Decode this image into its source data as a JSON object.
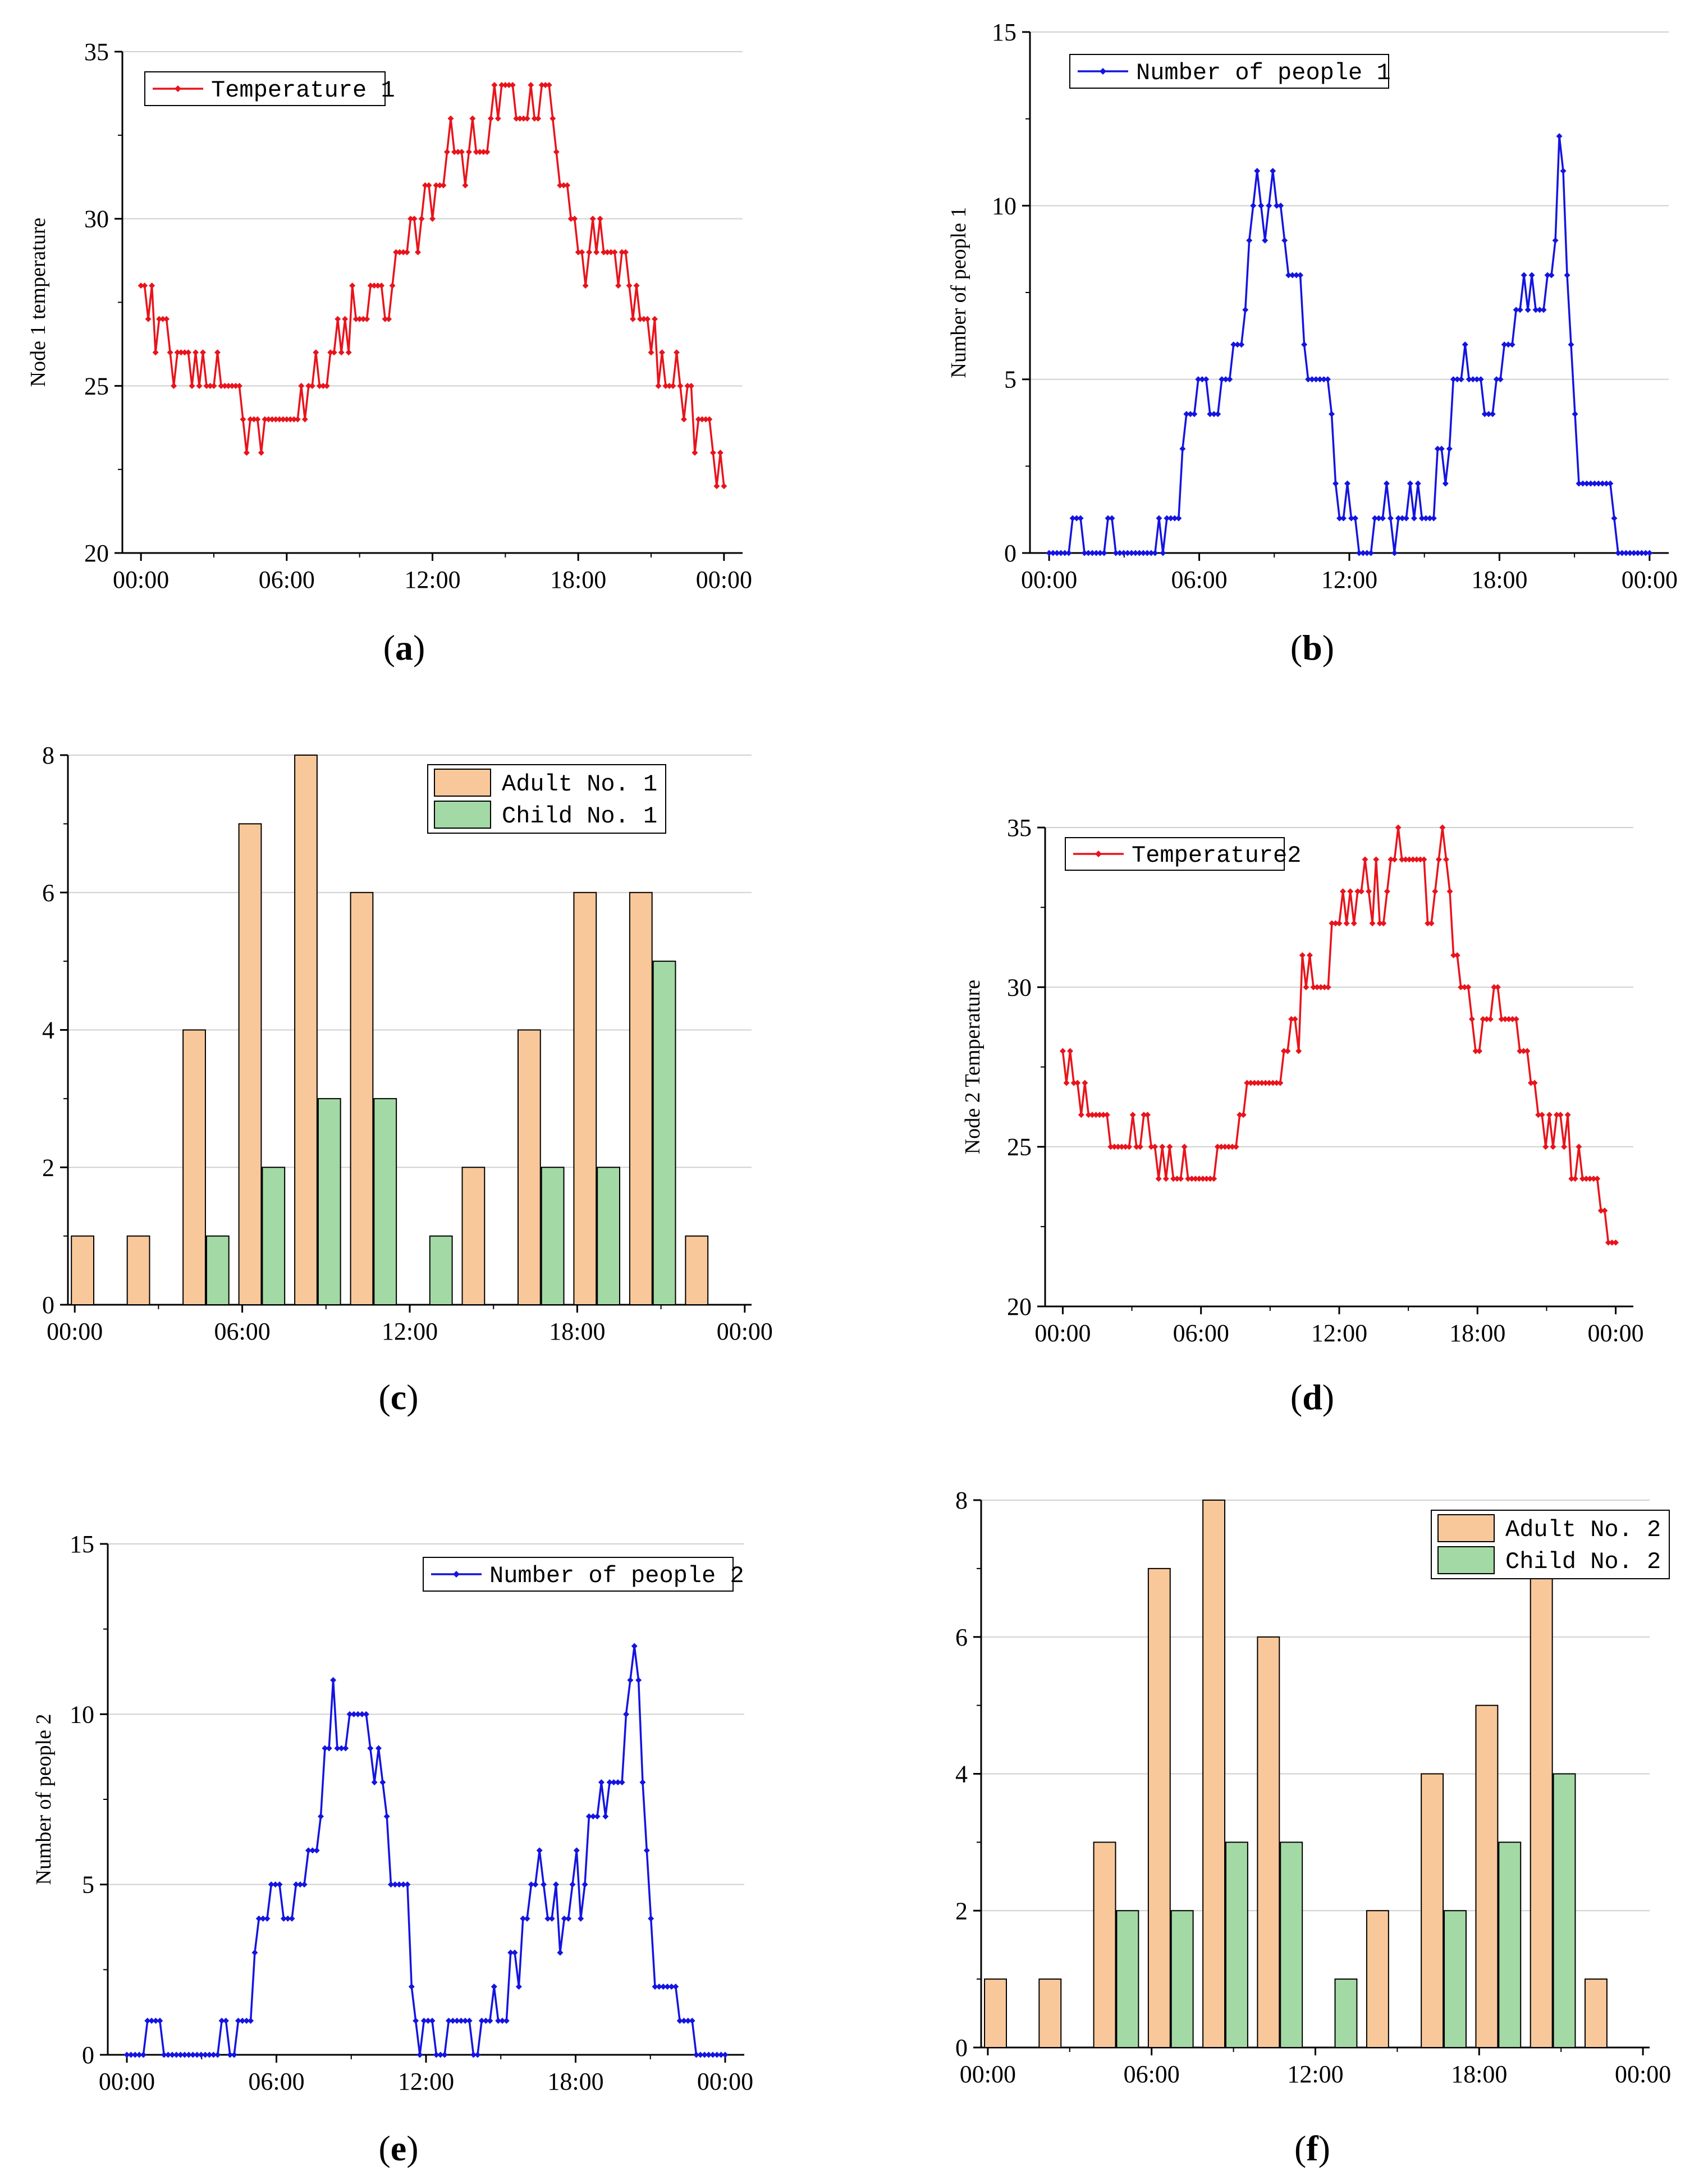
{
  "charts": [
    {
      "id": "a",
      "type": "line",
      "panel": "a",
      "caption_letter": "a",
      "ylabel": "Node 1 temperature",
      "ylim": [
        20,
        35
      ],
      "yticks": [
        20,
        25,
        30,
        35
      ],
      "xticks": [
        "00:00",
        "06:00",
        "12:00",
        "18:00",
        "00:00"
      ],
      "legend": "Temperature 1",
      "color": "#e8141c",
      "y_values": [
        28,
        28,
        27,
        28,
        26,
        27,
        27,
        27,
        26,
        25,
        26,
        26,
        26,
        26,
        25,
        26,
        25,
        26,
        25,
        25,
        25,
        26,
        25,
        25,
        25,
        25,
        25,
        25,
        24,
        23,
        24,
        24,
        24,
        23,
        24,
        24,
        24,
        24,
        24,
        24,
        24,
        24,
        24,
        24,
        25,
        24,
        25,
        25,
        26,
        25,
        25,
        25,
        26,
        26,
        27,
        26,
        27,
        26,
        28,
        27,
        27,
        27,
        27,
        28,
        28,
        28,
        28,
        27,
        27,
        28,
        29,
        29,
        29,
        29,
        30,
        30,
        29,
        30,
        31,
        31,
        30,
        31,
        31,
        31,
        32,
        33,
        32,
        32,
        32,
        31,
        32,
        33,
        32,
        32,
        32,
        32,
        33,
        34,
        33,
        34,
        34,
        34,
        34,
        33,
        33,
        33,
        33,
        34,
        33,
        33,
        34,
        34,
        34,
        33,
        32,
        31,
        31,
        31,
        30,
        30,
        29,
        29,
        28,
        29,
        30,
        29,
        30,
        29,
        29,
        29,
        29,
        28,
        29,
        29,
        28,
        27,
        28,
        27,
        27,
        27,
        26,
        27,
        25,
        26,
        25,
        25,
        25,
        26,
        25,
        24,
        25,
        25,
        23,
        24,
        24,
        24,
        24,
        23,
        22,
        23,
        22
      ]
    },
    {
      "id": "b",
      "type": "line",
      "panel": "b",
      "caption_letter": "b",
      "ylabel": "Number of people 1",
      "ylim": [
        0,
        15
      ],
      "yticks": [
        0,
        5,
        10,
        15
      ],
      "xticks": [
        "00:00",
        "06:00",
        "12:00",
        "18:00",
        "00:00"
      ],
      "legend": "Number of people 1",
      "color": "#1414e0",
      "y_values": [
        0,
        0,
        0,
        0,
        0,
        0,
        1,
        1,
        1,
        0,
        0,
        0,
        0,
        0,
        0,
        1,
        1,
        0,
        0,
        0,
        0,
        0,
        0,
        0,
        0,
        0,
        0,
        0,
        1,
        0,
        1,
        1,
        1,
        1,
        3,
        4,
        4,
        4,
        5,
        5,
        5,
        4,
        4,
        4,
        5,
        5,
        5,
        6,
        6,
        6,
        7,
        9,
        10,
        11,
        10,
        9,
        10,
        11,
        10,
        10,
        9,
        8,
        8,
        8,
        8,
        6,
        5,
        5,
        5,
        5,
        5,
        5,
        4,
        2,
        1,
        1,
        2,
        1,
        1,
        0,
        0,
        0,
        0,
        1,
        1,
        1,
        2,
        1,
        0,
        1,
        1,
        1,
        2,
        1,
        2,
        1,
        1,
        1,
        1,
        3,
        3,
        2,
        3,
        5,
        5,
        5,
        6,
        5,
        5,
        5,
        5,
        4,
        4,
        4,
        5,
        5,
        6,
        6,
        6,
        7,
        7,
        8,
        7,
        8,
        7,
        7,
        7,
        8,
        8,
        9,
        12,
        11,
        8,
        6,
        4,
        2,
        2,
        2,
        2,
        2,
        2,
        2,
        2,
        2,
        1,
        0,
        0,
        0,
        0,
        0,
        0,
        0,
        0,
        0
      ]
    },
    {
      "id": "c",
      "type": "bar",
      "panel": "c",
      "caption_letter": "c",
      "ylim": [
        0,
        8
      ],
      "yticks": [
        0,
        2,
        4,
        6,
        8
      ],
      "xticks": [
        "00:00",
        "06:00",
        "12:00",
        "18:00",
        "00:00"
      ],
      "categories": [
        0,
        2,
        4,
        6,
        8,
        10,
        12,
        14,
        16,
        18,
        20,
        22
      ],
      "series": [
        {
          "name": "Adult No. 1",
          "color": "#f9c89a",
          "values": [
            1,
            1,
            4,
            7,
            8,
            6,
            0,
            2,
            4,
            6,
            6,
            1
          ]
        },
        {
          "name": "Child No. 1",
          "color": "#a3d9a5",
          "values": [
            0,
            0,
            1,
            2,
            3,
            3,
            1,
            0,
            2,
            2,
            5,
            0
          ]
        }
      ]
    },
    {
      "id": "d",
      "type": "line",
      "panel": "d",
      "caption_letter": "d",
      "ylabel": "Node 2 Temperature",
      "ylim": [
        20,
        35
      ],
      "yticks": [
        20,
        25,
        30,
        35
      ],
      "xticks": [
        "00:00",
        "06:00",
        "12:00",
        "18:00",
        "00:00"
      ],
      "legend": "Temperature2",
      "color": "#e8141c",
      "y_values": [
        28,
        27,
        28,
        27,
        27,
        26,
        27,
        26,
        26,
        26,
        26,
        26,
        26,
        25,
        25,
        25,
        25,
        25,
        25,
        26,
        25,
        25,
        26,
        26,
        25,
        25,
        24,
        25,
        24,
        25,
        24,
        24,
        24,
        25,
        24,
        24,
        24,
        24,
        24,
        24,
        24,
        24,
        25,
        25,
        25,
        25,
        25,
        25,
        26,
        26,
        27,
        27,
        27,
        27,
        27,
        27,
        27,
        27,
        27,
        27,
        28,
        28,
        29,
        29,
        28,
        31,
        30,
        31,
        30,
        30,
        30,
        30,
        30,
        32,
        32,
        32,
        33,
        32,
        33,
        32,
        33,
        33,
        34,
        33,
        32,
        34,
        32,
        32,
        33,
        34,
        34,
        35,
        34,
        34,
        34,
        34,
        34,
        34,
        34,
        32,
        32,
        33,
        34,
        35,
        34,
        33,
        31,
        31,
        30,
        30,
        30,
        29,
        28,
        28,
        29,
        29,
        29,
        30,
        30,
        29,
        29,
        29,
        29,
        29,
        28,
        28,
        28,
        27,
        27,
        26,
        26,
        25,
        26,
        25,
        26,
        26,
        25,
        26,
        24,
        24,
        25,
        24,
        24,
        24,
        24,
        24,
        23,
        23,
        22,
        22,
        22
      ]
    },
    {
      "id": "e",
      "type": "line",
      "panel": "e",
      "caption_letter": "e",
      "ylabel": "Number of people 2",
      "ylim": [
        0,
        15
      ],
      "yticks": [
        0,
        5,
        10,
        15
      ],
      "xticks": [
        "00:00",
        "06:00",
        "12:00",
        "18:00",
        "00:00"
      ],
      "legend": "Number of people 2",
      "color": "#1414e0",
      "y_values": [
        0,
        0,
        0,
        0,
        0,
        1,
        1,
        1,
        1,
        0,
        0,
        0,
        0,
        0,
        0,
        0,
        0,
        0,
        0,
        0,
        0,
        0,
        0,
        1,
        1,
        0,
        0,
        1,
        1,
        1,
        1,
        3,
        4,
        4,
        4,
        5,
        5,
        5,
        4,
        4,
        4,
        5,
        5,
        5,
        6,
        6,
        6,
        7,
        9,
        9,
        11,
        9,
        9,
        9,
        10,
        10,
        10,
        10,
        10,
        9,
        8,
        9,
        8,
        7,
        5,
        5,
        5,
        5,
        5,
        2,
        1,
        0,
        1,
        1,
        1,
        0,
        0,
        0,
        1,
        1,
        1,
        1,
        1,
        1,
        0,
        0,
        1,
        1,
        1,
        2,
        1,
        1,
        1,
        3,
        3,
        2,
        4,
        4,
        5,
        5,
        6,
        5,
        4,
        4,
        5,
        3,
        4,
        4,
        5,
        6,
        4,
        5,
        7,
        7,
        7,
        8,
        7,
        8,
        8,
        8,
        8,
        10,
        11,
        12,
        11,
        8,
        6,
        4,
        2,
        2,
        2,
        2,
        2,
        2,
        1,
        1,
        1,
        1,
        0,
        0,
        0,
        0,
        0,
        0,
        0,
        0
      ]
    },
    {
      "id": "f",
      "type": "bar",
      "panel": "f",
      "caption_letter": "f",
      "ylim": [
        0,
        8
      ],
      "yticks": [
        0,
        2,
        4,
        6,
        8
      ],
      "xticks": [
        "00:00",
        "06:00",
        "12:00",
        "18:00",
        "00:00"
      ],
      "categories": [
        0,
        2,
        4,
        6,
        8,
        10,
        12,
        14,
        16,
        18,
        20,
        22
      ],
      "series": [
        {
          "name": "Adult No. 2",
          "color": "#f9c89a",
          "values": [
            1,
            1,
            3,
            7,
            8,
            6,
            0,
            2,
            4,
            5,
            7,
            1
          ]
        },
        {
          "name": "Child No. 2",
          "color": "#a3d9a5",
          "values": [
            0,
            0,
            2,
            2,
            3,
            3,
            1,
            0,
            2,
            3,
            4,
            0
          ]
        }
      ]
    }
  ],
  "captions": {
    "a": "(a)",
    "b": "(b)",
    "c": "(c)",
    "d": "(d)",
    "e": "(e)",
    "f": "(f)"
  },
  "chart_data": [
    {
      "type": "line",
      "panel": "a",
      "title": "",
      "xlabel": "",
      "ylabel": "Node 1 temperature",
      "ylim": [
        20,
        35
      ],
      "x_ticks": [
        "00:00",
        "06:00",
        "12:00",
        "18:00",
        "00:00"
      ],
      "series": [
        {
          "name": "Temperature 1",
          "color": "#e8141c"
        }
      ]
    },
    {
      "type": "line",
      "panel": "b",
      "title": "",
      "xlabel": "",
      "ylabel": "Number of people 1",
      "ylim": [
        0,
        15
      ],
      "x_ticks": [
        "00:00",
        "06:00",
        "12:00",
        "18:00",
        "00:00"
      ],
      "series": [
        {
          "name": "Number of people 1",
          "color": "#1414e0"
        }
      ]
    },
    {
      "type": "bar",
      "panel": "c",
      "title": "",
      "categories": [
        "00:00",
        "02:00",
        "04:00",
        "06:00",
        "08:00",
        "10:00",
        "12:00",
        "14:00",
        "16:00",
        "18:00",
        "20:00",
        "22:00"
      ],
      "series": [
        {
          "name": "Adult No. 1",
          "values": [
            1,
            1,
            4,
            7,
            8,
            6,
            0,
            2,
            4,
            6,
            6,
            1
          ]
        },
        {
          "name": "Child No. 1",
          "values": [
            0,
            0,
            1,
            2,
            3,
            3,
            1,
            0,
            2,
            2,
            5,
            0
          ]
        }
      ],
      "ylim": [
        0,
        8
      ]
    },
    {
      "type": "line",
      "panel": "d",
      "title": "",
      "ylabel": "Node 2 Temperature",
      "ylim": [
        20,
        35
      ],
      "series": [
        {
          "name": "Temperature2",
          "color": "#e8141c"
        }
      ]
    },
    {
      "type": "line",
      "panel": "e",
      "title": "",
      "ylabel": "Number of people 2",
      "ylim": [
        0,
        15
      ],
      "series": [
        {
          "name": "Number of people 2",
          "color": "#1414e0"
        }
      ]
    },
    {
      "type": "bar",
      "panel": "f",
      "title": "",
      "categories": [
        "00:00",
        "02:00",
        "04:00",
        "06:00",
        "08:00",
        "10:00",
        "12:00",
        "14:00",
        "16:00",
        "18:00",
        "20:00",
        "22:00"
      ],
      "series": [
        {
          "name": "Adult No. 2",
          "values": [
            1,
            1,
            3,
            7,
            8,
            6,
            0,
            2,
            4,
            5,
            7,
            1
          ]
        },
        {
          "name": "Child No. 2",
          "values": [
            0,
            0,
            2,
            2,
            3,
            3,
            1,
            0,
            2,
            3,
            4,
            0
          ]
        }
      ],
      "ylim": [
        0,
        8
      ]
    }
  ]
}
